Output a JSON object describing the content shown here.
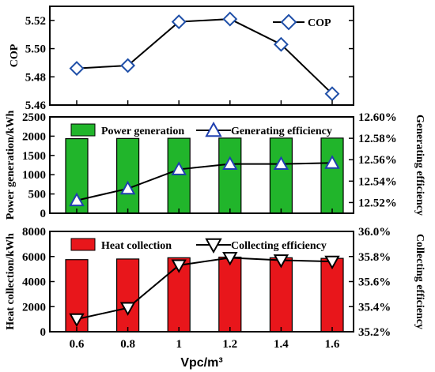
{
  "chart_data": [
    {
      "type": "line",
      "x": [
        "0.6",
        "0.8",
        "1",
        "1.2",
        "1.4",
        "1.6"
      ],
      "series": [
        {
          "name": "COP",
          "values": [
            5.486,
            5.488,
            5.519,
            5.521,
            5.503,
            5.468
          ],
          "color": "#1f4fa8",
          "marker": "diamond",
          "fill": "#ffffff"
        }
      ],
      "ylabel": "COP",
      "ylim": [
        5.46,
        5.53
      ],
      "yticks": [
        "5.46",
        "5.48",
        "5.50",
        "5.52"
      ],
      "legend_position": "top-right"
    },
    {
      "type": "bar",
      "categories": [
        "0.6",
        "0.8",
        "1",
        "1.2",
        "1.4",
        "1.6"
      ],
      "series": [
        {
          "name": "Power generation",
          "values": [
            1935,
            1940,
            1945,
            1950,
            1950,
            1950
          ],
          "color": "#21b52b",
          "axis": "left"
        },
        {
          "name": "Generating efficiency",
          "type": "line",
          "values": [
            12.522,
            12.533,
            12.551,
            12.556,
            12.556,
            12.557
          ],
          "color": "#1f3faf",
          "marker": "triangle-up",
          "axis": "right"
        }
      ],
      "ylabel": "Power generation/kWh",
      "ylim": [
        0,
        2500
      ],
      "yticks": [
        "0",
        "500",
        "1000",
        "1500",
        "2000",
        "2500"
      ],
      "y2label": "Generating efficiency",
      "y2lim": [
        12.51,
        12.6
      ],
      "y2ticks": [
        "12.52%",
        "12.54%",
        "12.56%",
        "12.58%",
        "12.60%"
      ],
      "legend_position": "top"
    },
    {
      "type": "bar",
      "categories": [
        "0.6",
        "0.8",
        "1",
        "1.2",
        "1.4",
        "1.6"
      ],
      "series": [
        {
          "name": "Heat collection",
          "values": [
            5750,
            5800,
            5900,
            5950,
            5900,
            5850
          ],
          "color": "#e8161b",
          "axis": "left"
        },
        {
          "name": "Collecting efficiency",
          "type": "line",
          "values": [
            35.3,
            35.39,
            35.73,
            35.79,
            35.77,
            35.76
          ],
          "color": "#000000",
          "marker": "triangle-down",
          "axis": "right"
        }
      ],
      "ylabel": "Heat collection/kWh",
      "ylim": [
        0,
        8000
      ],
      "yticks": [
        "0",
        "2000",
        "4000",
        "6000",
        "8000"
      ],
      "y2label": "Collecting efficiency",
      "y2lim": [
        35.2,
        36.0
      ],
      "y2ticks": [
        "35.2%",
        "35.4%",
        "35.6%",
        "35.8%",
        "36.0%"
      ],
      "xlabel": "Vpc/m³",
      "legend_position": "top"
    }
  ]
}
